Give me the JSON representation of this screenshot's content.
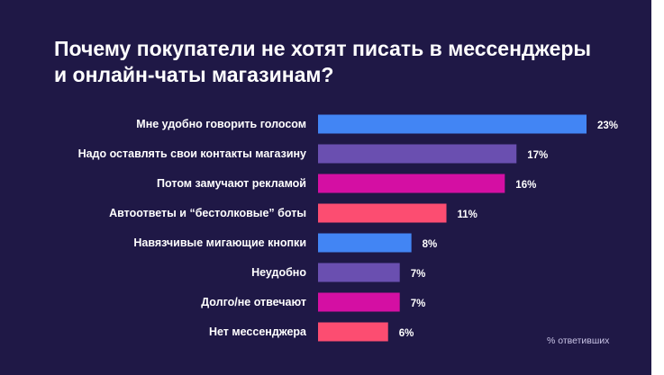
{
  "chart_data": {
    "type": "bar",
    "orientation": "horizontal",
    "title_lines": [
      "Почему покупатели не хотят писать в мессенджеры",
      "и онлайн-чаты магазинам?"
    ],
    "categories": [
      "Мне удобно говорить голосом",
      "Надо оставлять свои контакты магазину",
      "Потом замучают рекламой",
      "Автоответы и “бестолковые” боты",
      "Навязчивые мигающие кнопки",
      "Неудобно",
      "Долго/не отвечают",
      "Нет мессенджера"
    ],
    "values": [
      23,
      17,
      16,
      11,
      8,
      7,
      7,
      6
    ],
    "value_labels": [
      "23%",
      "17%",
      "16%",
      "11%",
      "8%",
      "7%",
      "7%",
      "6%"
    ],
    "bar_colors": [
      "#4285f4",
      "#6a4fb0",
      "#d40fa3",
      "#fc4d71",
      "#4285f4",
      "#6a4fb0",
      "#d40fa3",
      "#fc4d71"
    ],
    "unit_note": "% ответивших",
    "xlim": [
      0,
      23
    ],
    "grid": false,
    "legend": "none"
  },
  "colors": {
    "background": "#1f1846",
    "text": "#ffffff",
    "muted_text": "#c9c4e6"
  }
}
